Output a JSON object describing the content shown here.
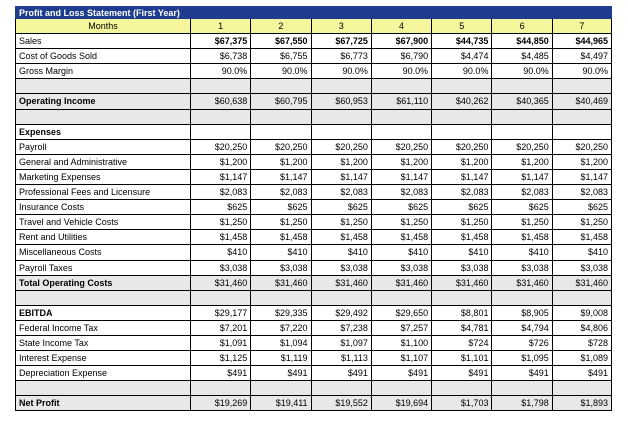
{
  "title": "Profit and Loss Statement (First Year)",
  "header": {
    "label": "Months",
    "months": [
      "1",
      "2",
      "3",
      "4",
      "5",
      "6",
      "7"
    ]
  },
  "blocks": [
    {
      "type": "row",
      "cls": "plain sales",
      "label": "Sales",
      "values": [
        "$67,375",
        "$67,550",
        "$67,725",
        "$67,900",
        "$44,735",
        "$44,850",
        "$44,965"
      ]
    },
    {
      "type": "row",
      "cls": "plain",
      "label": "Cost of Goods Sold",
      "values": [
        "$6,738",
        "$6,755",
        "$6,773",
        "$6,790",
        "$4,474",
        "$4,485",
        "$4,497"
      ]
    },
    {
      "type": "row",
      "cls": "plain",
      "label": "Gross Margin",
      "values": [
        "90.0%",
        "90.0%",
        "90.0%",
        "90.0%",
        "90.0%",
        "90.0%",
        "90.0%"
      ]
    },
    {
      "type": "blank"
    },
    {
      "type": "row",
      "cls": "shade bold",
      "label": "Operating Income",
      "values": [
        "$60,638",
        "$60,795",
        "$60,953",
        "$61,110",
        "$40,262",
        "$40,365",
        "$40,469"
      ]
    },
    {
      "type": "blank"
    },
    {
      "type": "row",
      "cls": "plain bold",
      "label": "Expenses",
      "values": [
        "",
        "",
        "",
        "",
        "",
        "",
        ""
      ]
    },
    {
      "type": "row",
      "cls": "plain",
      "label": "Payroll",
      "values": [
        "$20,250",
        "$20,250",
        "$20,250",
        "$20,250",
        "$20,250",
        "$20,250",
        "$20,250"
      ]
    },
    {
      "type": "row",
      "cls": "plain",
      "label": "General and Administrative",
      "values": [
        "$1,200",
        "$1,200",
        "$1,200",
        "$1,200",
        "$1,200",
        "$1,200",
        "$1,200"
      ]
    },
    {
      "type": "row",
      "cls": "plain",
      "label": "Marketing Expenses",
      "values": [
        "$1,147",
        "$1,147",
        "$1,147",
        "$1,147",
        "$1,147",
        "$1,147",
        "$1,147"
      ]
    },
    {
      "type": "row",
      "cls": "plain",
      "label": "Professional Fees and Licensure",
      "values": [
        "$2,083",
        "$2,083",
        "$2,083",
        "$2,083",
        "$2,083",
        "$2,083",
        "$2,083"
      ]
    },
    {
      "type": "row",
      "cls": "plain",
      "label": "Insurance Costs",
      "values": [
        "$625",
        "$625",
        "$625",
        "$625",
        "$625",
        "$625",
        "$625"
      ]
    },
    {
      "type": "row",
      "cls": "plain",
      "label": "Travel and Vehicle Costs",
      "values": [
        "$1,250",
        "$1,250",
        "$1,250",
        "$1,250",
        "$1,250",
        "$1,250",
        "$1,250"
      ]
    },
    {
      "type": "row",
      "cls": "plain",
      "label": "Rent and Utilities",
      "values": [
        "$1,458",
        "$1,458",
        "$1,458",
        "$1,458",
        "$1,458",
        "$1,458",
        "$1,458"
      ]
    },
    {
      "type": "row",
      "cls": "plain",
      "label": "Miscellaneous Costs",
      "values": [
        "$410",
        "$410",
        "$410",
        "$410",
        "$410",
        "$410",
        "$410"
      ]
    },
    {
      "type": "row",
      "cls": "plain",
      "label": "Payroll Taxes",
      "values": [
        "$3,038",
        "$3,038",
        "$3,038",
        "$3,038",
        "$3,038",
        "$3,038",
        "$3,038"
      ]
    },
    {
      "type": "row",
      "cls": "shade bold",
      "label": "Total Operating Costs",
      "values": [
        "$31,460",
        "$31,460",
        "$31,460",
        "$31,460",
        "$31,460",
        "$31,460",
        "$31,460"
      ]
    },
    {
      "type": "blank"
    },
    {
      "type": "row",
      "cls": "plain bold",
      "label": "EBITDA",
      "values": [
        "$29,177",
        "$29,335",
        "$29,492",
        "$29,650",
        "$8,801",
        "$8,905",
        "$9,008"
      ]
    },
    {
      "type": "row",
      "cls": "plain",
      "label": "Federal Income Tax",
      "values": [
        "$7,201",
        "$7,220",
        "$7,238",
        "$7,257",
        "$4,781",
        "$4,794",
        "$4,806"
      ]
    },
    {
      "type": "row",
      "cls": "plain",
      "label": "State Income Tax",
      "values": [
        "$1,091",
        "$1,094",
        "$1,097",
        "$1,100",
        "$724",
        "$726",
        "$728"
      ]
    },
    {
      "type": "row",
      "cls": "plain",
      "label": "Interest Expense",
      "values": [
        "$1,125",
        "$1,119",
        "$1,113",
        "$1,107",
        "$1,101",
        "$1,095",
        "$1,089"
      ]
    },
    {
      "type": "row",
      "cls": "plain",
      "label": "Depreciation Expense",
      "values": [
        "$491",
        "$491",
        "$491",
        "$491",
        "$491",
        "$491",
        "$491"
      ]
    },
    {
      "type": "blank"
    },
    {
      "type": "row",
      "cls": "shade bold",
      "label": "Net Profit",
      "values": [
        "$19,269",
        "$19,411",
        "$19,552",
        "$19,694",
        "$1,703",
        "$1,798",
        "$1,893"
      ]
    }
  ]
}
